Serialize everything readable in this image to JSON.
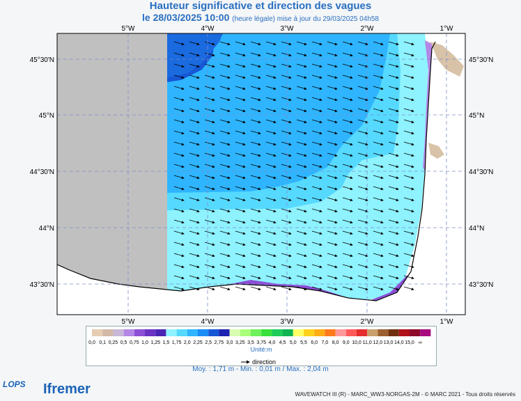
{
  "header": {
    "title": "Hauteur significative et direction des vagues",
    "date_main": "le 28/03/2025 10:00",
    "date_detail": "(heure légale) mise à jour du 29/03/2025 04h58"
  },
  "map": {
    "lon_labels_top": [
      "5°W",
      "4°W",
      "3°W",
      "2°W",
      "1°W"
    ],
    "lon_labels_bottom": [
      "5°W",
      "4°W",
      "3°W",
      "2°W",
      "1°W"
    ],
    "lat_labels": [
      "45°30'N",
      "45°N",
      "44°30'N",
      "44°N",
      "43°30'N"
    ],
    "colors": {
      "land": "#c0c0c0",
      "coast_land": "#d8c3a8"
    }
  },
  "legend": {
    "labels": [
      "0,0",
      "0,1",
      "0,25",
      "0,5",
      "0,75",
      "1,0",
      "1,25",
      "1,5",
      "1,75",
      "2,0",
      "2,25",
      "2,5",
      "2,75",
      "3,0",
      "3,25",
      "3,5",
      "3,75",
      "4,0",
      "4,5",
      "5,0",
      "5,5",
      "6,0",
      "7,0",
      "8,0",
      "9,0",
      "10,0",
      "11,0",
      "12,0",
      "13,0",
      "14,0",
      "15,0",
      "∞"
    ],
    "colors": [
      "#e6cdb3",
      "#d2b8a6",
      "#c9b7d8",
      "#b487e6",
      "#8c4fd6",
      "#6a33c4",
      "#4a25b3",
      "#8ef2ff",
      "#56d9ff",
      "#2fb5ff",
      "#1a8cf5",
      "#1657d6",
      "#1e22b0",
      "#d8ffb0",
      "#aaff7a",
      "#6ef05a",
      "#37e03b",
      "#1ecc5a",
      "#10b450",
      "#ffff66",
      "#ffd11a",
      "#ffad14",
      "#ff7a1a",
      "#ff9999",
      "#ff5a5a",
      "#e62e2e",
      "#c9a06b",
      "#9c6030",
      "#70300f",
      "#b0101a",
      "#8c0a2a",
      "#a80a80"
    ],
    "unit": "Unité:m",
    "direction_label": "direction"
  },
  "stats": "Moy. : 1,71 m   -   Min. : 0,01 m / Max. : 2,04 m",
  "footer": "WAVEWATCH III (R) - MARC_WW3-NORGAS-2M - © MARC 2021 - Tous droits réservés",
  "logos": {
    "lops": "LOPS",
    "ifremer": "Ifremer"
  }
}
